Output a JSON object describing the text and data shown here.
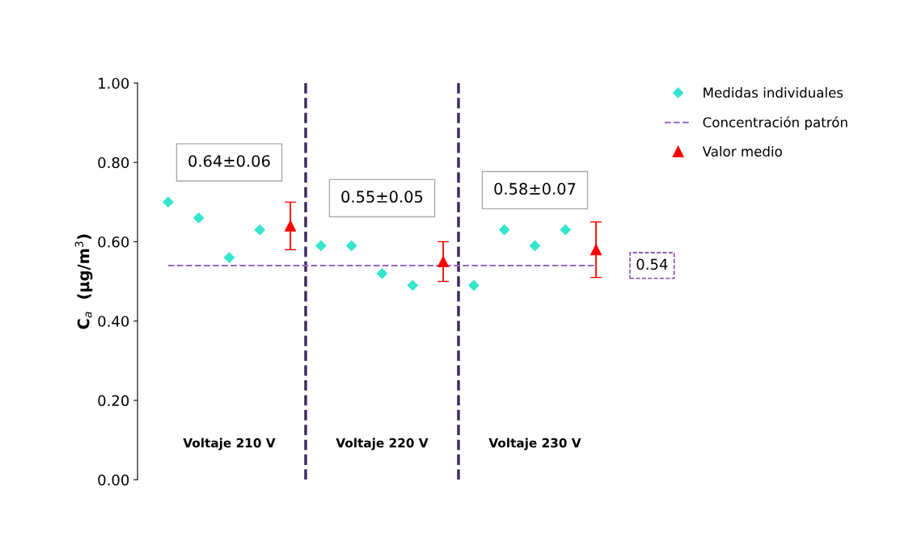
{
  "chart_data": {
    "type": "scatter",
    "ylabel": "C$_{a}$  (µg/m$^{3}$)",
    "categories": [
      null,
      null,
      null,
      null,
      null,
      null,
      null,
      null,
      null,
      null,
      null,
      null,
      null,
      null,
      null
    ],
    "series": [
      {
        "name": "Medidas individuales",
        "marker": "diamond",
        "color": "#33e6cc",
        "values": [
          0.7,
          0.66,
          0.56,
          0.63,
          null,
          0.59,
          0.59,
          0.52,
          0.49,
          null,
          0.49,
          0.63,
          0.59,
          0.63,
          null
        ]
      },
      {
        "name": "Concentración patrón",
        "type": "line",
        "line_style": "dashed",
        "marker": "none",
        "color": "#9966cc",
        "values": [
          0.54,
          0.54,
          0.54,
          0.54,
          0.54,
          0.54,
          0.54,
          0.54,
          0.54,
          0.54,
          0.54,
          0.54,
          0.54,
          0.54,
          0.54
        ]
      },
      {
        "name": "Valor medio",
        "marker": "triangle",
        "color": "#ff0000",
        "values": [
          null,
          null,
          null,
          null,
          0.64,
          null,
          null,
          null,
          null,
          0.55,
          null,
          null,
          null,
          null,
          0.58
        ],
        "errors": [
          null,
          null,
          null,
          null,
          0.06,
          null,
          null,
          null,
          null,
          0.05,
          null,
          null,
          null,
          null,
          0.07
        ]
      }
    ],
    "annotations": [
      "0.64±0.06",
      "0.55±0.05",
      "0.58±0.07",
      "Voltaje 210 V",
      "Voltaje 220 V",
      "Voltaje 230 V",
      "0.54"
    ],
    "ylim": [
      0,
      1
    ],
    "yticks": [
      {
        "value": 0,
        "label": "0.00"
      },
      {
        "value": 0.2,
        "label": "0.20"
      },
      {
        "value": 0.4,
        "label": "0.40"
      },
      {
        "value": 0.6,
        "label": "0.60"
      },
      {
        "value": 0.8,
        "label": "0.80"
      },
      {
        "value": 1,
        "label": "1.00"
      }
    ],
    "tick_labels": "y",
    "grid": false,
    "legend": "top right"
  }
}
